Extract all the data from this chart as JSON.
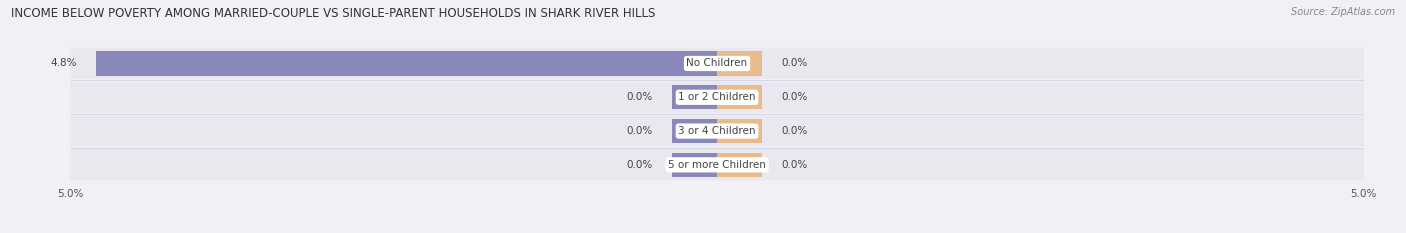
{
  "title": "INCOME BELOW POVERTY AMONG MARRIED-COUPLE VS SINGLE-PARENT HOUSEHOLDS IN SHARK RIVER HILLS",
  "source": "Source: ZipAtlas.com",
  "categories": [
    "No Children",
    "1 or 2 Children",
    "3 or 4 Children",
    "5 or more Children"
  ],
  "married_values": [
    4.8,
    0.0,
    0.0,
    0.0
  ],
  "single_values": [
    0.0,
    0.0,
    0.0,
    0.0
  ],
  "x_max": 5.0,
  "married_color": "#8888bb",
  "single_color": "#e8bc8a",
  "bg_color": "#f0f0f5",
  "row_bg_even": "#eaeaef",
  "row_bg_odd": "#e4e4ea",
  "title_fontsize": 8.5,
  "label_fontsize": 7.5,
  "category_fontsize": 7.5,
  "axis_fontsize": 7.5,
  "source_fontsize": 7,
  "stub_size": 0.35
}
